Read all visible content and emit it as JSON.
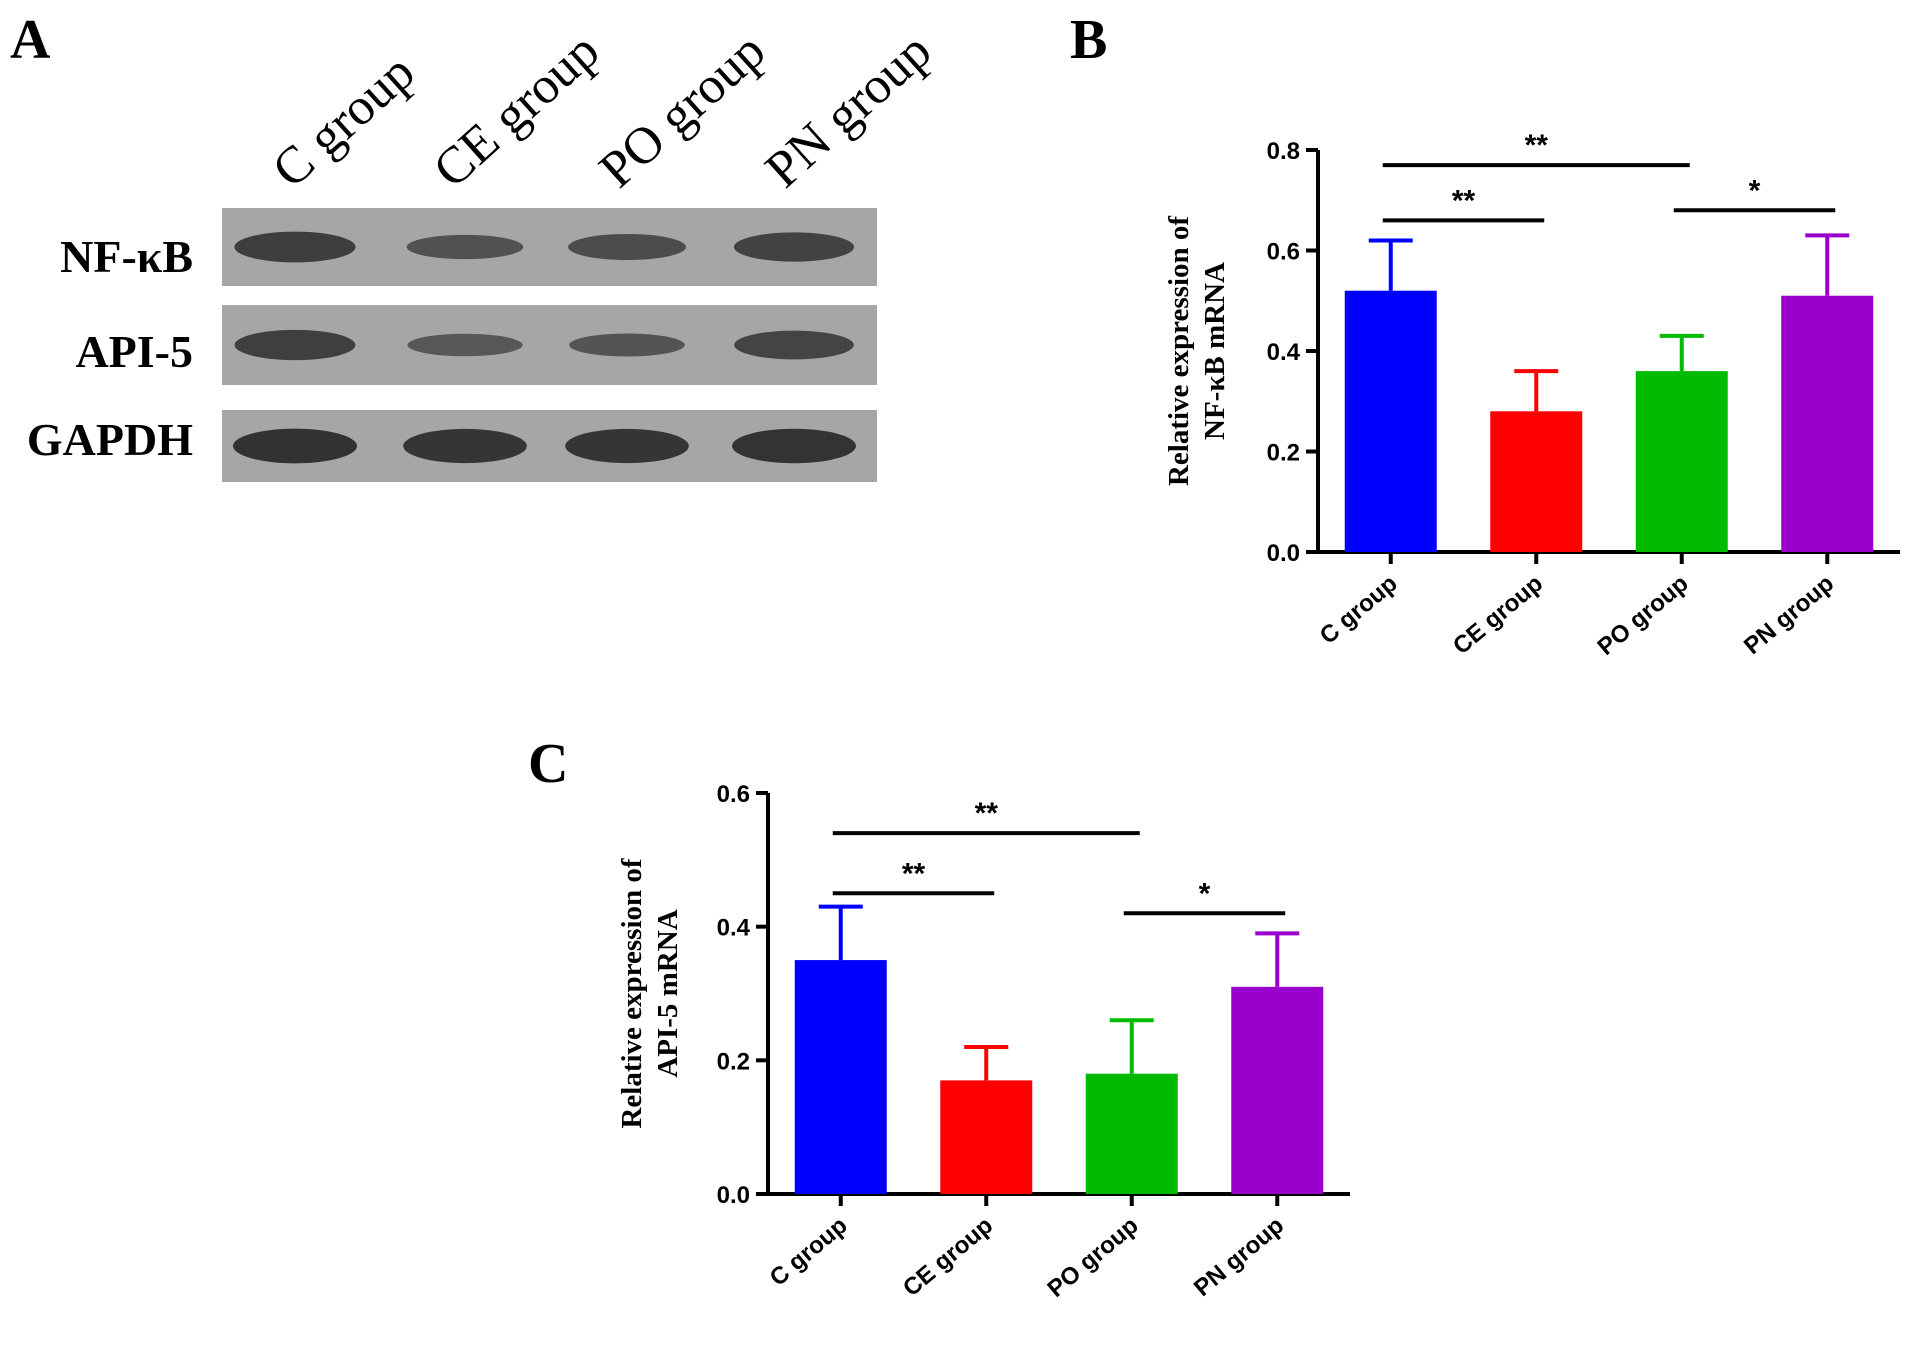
{
  "panels": {
    "A": "A",
    "B": "B",
    "C": "C"
  },
  "western_blot": {
    "lanes": [
      "C group",
      "CE group",
      "PO group",
      "PN group"
    ],
    "rows": [
      {
        "label": "NF-κB",
        "intensities": [
          0.8,
          0.55,
          0.62,
          0.74
        ]
      },
      {
        "label": "API-5",
        "intensities": [
          0.78,
          0.48,
          0.5,
          0.72
        ]
      },
      {
        "label": "GAPDH",
        "intensities": [
          0.95,
          0.93,
          0.93,
          0.94
        ]
      }
    ],
    "colors": {
      "background": "#a6a6a6",
      "band": "#2e2e2e"
    }
  },
  "chart_data": [
    {
      "type": "bar",
      "panel": "B",
      "categories": [
        "C group",
        "CE group",
        "PO group",
        "PN group"
      ],
      "values": [
        0.52,
        0.28,
        0.36,
        0.51
      ],
      "errors": [
        0.1,
        0.08,
        0.07,
        0.12
      ],
      "colors": [
        "#0000ff",
        "#ff0000",
        "#00bb00",
        "#9900cc"
      ],
      "ylabel": [
        "Relative expression of",
        "NF-κB mRNA"
      ],
      "ylim": [
        0,
        0.8
      ],
      "yticks": [
        "0.0",
        "0.2",
        "0.4",
        "0.6",
        "0.8"
      ],
      "significance": [
        {
          "from": 0,
          "to": 1,
          "label": "**",
          "y": 0.66
        },
        {
          "from": 0,
          "to": 2,
          "label": "**",
          "y": 0.77
        },
        {
          "from": 2,
          "to": 3,
          "label": "*",
          "y": 0.68
        }
      ]
    },
    {
      "type": "bar",
      "panel": "C",
      "categories": [
        "C group",
        "CE group",
        "PO group",
        "PN group"
      ],
      "values": [
        0.35,
        0.17,
        0.18,
        0.31
      ],
      "errors": [
        0.08,
        0.05,
        0.08,
        0.08
      ],
      "colors": [
        "#0000ff",
        "#ff0000",
        "#00bb00",
        "#9900cc"
      ],
      "ylabel": [
        "Relative expression of",
        "API-5 mRNA"
      ],
      "ylim": [
        0,
        0.6
      ],
      "yticks": [
        "0.0",
        "0.2",
        "0.4",
        "0.6"
      ],
      "significance": [
        {
          "from": 0,
          "to": 1,
          "label": "**",
          "y": 0.45
        },
        {
          "from": 0,
          "to": 2,
          "label": "**",
          "y": 0.54
        },
        {
          "from": 2,
          "to": 3,
          "label": "*",
          "y": 0.42
        }
      ]
    }
  ]
}
